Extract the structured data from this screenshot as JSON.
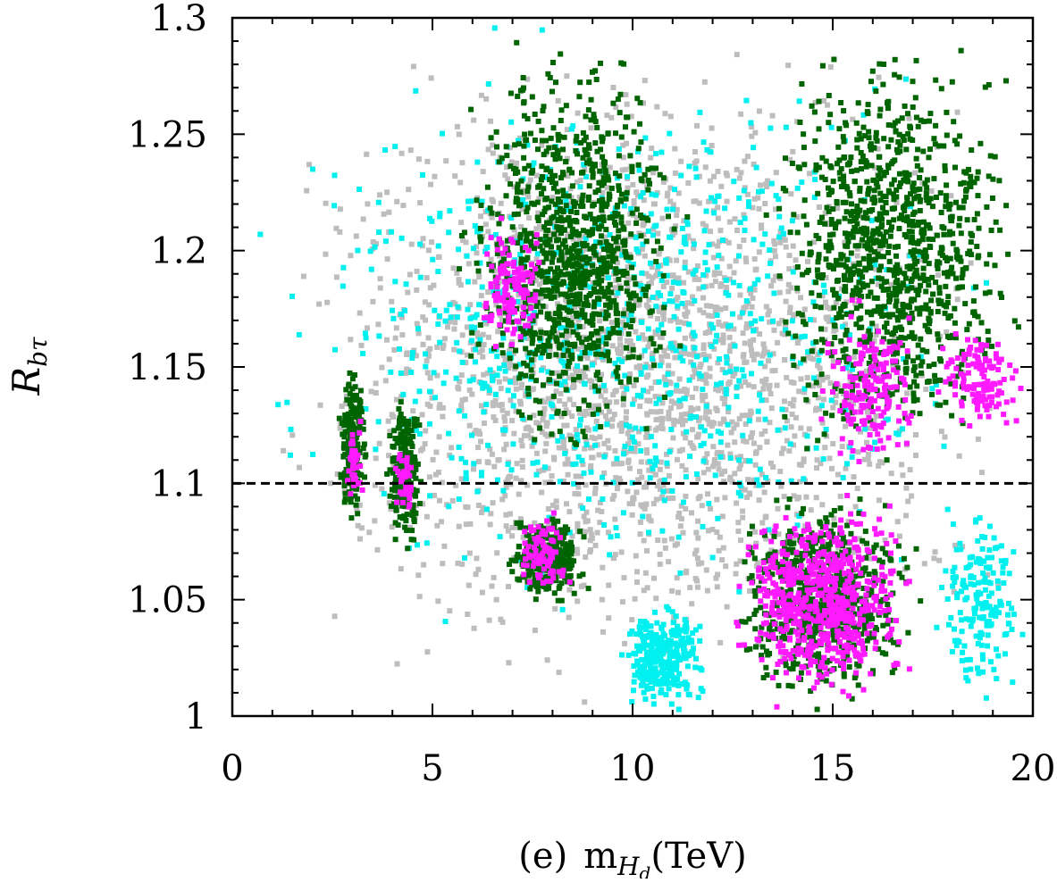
{
  "chart_data": {
    "type": "scatter",
    "panel_label": "(e)",
    "xlabel": {
      "prefix": "m",
      "subscript": "H",
      "subsubscript": "d",
      "unit": "(TeV)"
    },
    "ylabel": {
      "main": "R",
      "subscript": "bτ"
    },
    "xlim": [
      0,
      20
    ],
    "ylim": [
      1.0,
      1.3
    ],
    "x_ticks": [
      0,
      5,
      10,
      15,
      20
    ],
    "y_ticks": [
      1.0,
      1.05,
      1.1,
      1.15,
      1.2,
      1.25,
      1.3
    ],
    "x_tick_labels": [
      "0",
      "5",
      "10",
      "15",
      "20"
    ],
    "y_tick_labels": [
      "1",
      "1.05",
      "1.1",
      "1.15",
      "1.2",
      "1.25",
      "1.3"
    ],
    "reference_line": {
      "y": 1.1,
      "style": "dashed",
      "color": "#000000"
    },
    "grid": false,
    "legend": "none",
    "series_colors": {
      "gray": "#bdbdbd",
      "cyan": "#00f0f0",
      "green": "#006400",
      "magenta": "#ff1aff"
    },
    "regions": [
      {
        "color": "gray",
        "x": [
          0.3,
          20.0
        ],
        "y": [
          1.0,
          1.3
        ],
        "density": "high"
      },
      {
        "color": "cyan",
        "x": [
          0.0,
          20.0
        ],
        "y": [
          1.03,
          1.3
        ],
        "density": "medium"
      },
      {
        "color": "cyan",
        "x": [
          9.5,
          12.0
        ],
        "y": [
          1.0,
          1.05
        ],
        "density": "high"
      },
      {
        "color": "cyan",
        "x": [
          17.4,
          20.0
        ],
        "y": [
          1.0,
          1.1
        ],
        "density": "medium"
      },
      {
        "color": "green",
        "x": [
          2.6,
          3.4
        ],
        "y": [
          1.08,
          1.155
        ],
        "density": "high"
      },
      {
        "color": "green",
        "x": [
          3.8,
          4.8
        ],
        "y": [
          1.07,
          1.14
        ],
        "density": "high"
      },
      {
        "color": "green",
        "x": [
          5.5,
          11.5
        ],
        "y": [
          1.1,
          1.3
        ],
        "density": "high"
      },
      {
        "color": "green",
        "x": [
          6.8,
          9.0
        ],
        "y": [
          1.045,
          1.09
        ],
        "density": "high"
      },
      {
        "color": "green",
        "x": [
          12.2,
          17.4
        ],
        "y": [
          1.0,
          1.1
        ],
        "density": "high"
      },
      {
        "color": "green",
        "x": [
          13.0,
          20.0
        ],
        "y": [
          1.1,
          1.3
        ],
        "density": "high"
      },
      {
        "color": "magenta",
        "x": [
          2.8,
          3.3
        ],
        "y": [
          1.09,
          1.13
        ],
        "density": "low"
      },
      {
        "color": "magenta",
        "x": [
          4.0,
          4.6
        ],
        "y": [
          1.08,
          1.12
        ],
        "density": "low"
      },
      {
        "color": "magenta",
        "x": [
          6.0,
          8.0
        ],
        "y": [
          1.15,
          1.22
        ],
        "density": "medium"
      },
      {
        "color": "magenta",
        "x": [
          7.0,
          8.5
        ],
        "y": [
          1.05,
          1.09
        ],
        "density": "medium"
      },
      {
        "color": "magenta",
        "x": [
          12.3,
          17.2
        ],
        "y": [
          1.0,
          1.1
        ],
        "density": "high"
      },
      {
        "color": "magenta",
        "x": [
          14.5,
          17.5
        ],
        "y": [
          1.1,
          1.18
        ],
        "density": "medium"
      },
      {
        "color": "magenta",
        "x": [
          17.5,
          20.0
        ],
        "y": [
          1.12,
          1.17
        ],
        "density": "medium"
      }
    ]
  }
}
